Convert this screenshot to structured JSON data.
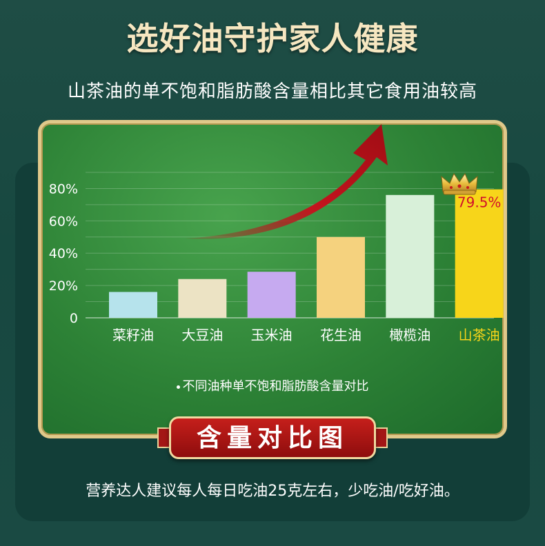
{
  "page": {
    "heading": "选好油守护家人健康",
    "subheading": "山茶油的单不饱和脂肪酸含量相比其它食用油较高",
    "source_note": "不同油种单不饱和脂肪酸含量对比",
    "ribbon_title": "含量对比图",
    "footer": "营养达人建议每人每日吃油25克左右，少吃油/吃好油。"
  },
  "chart_data": {
    "type": "bar",
    "categories": [
      "菜籽油",
      "大豆油",
      "玉米油",
      "花生油",
      "橄榄油",
      "山茶油"
    ],
    "values": [
      16,
      24,
      28.5,
      50,
      76,
      79.5
    ],
    "ylim": [
      0,
      90
    ],
    "yticks": [
      0,
      20,
      40,
      60,
      80
    ],
    "ytick_labels": [
      "0",
      "20%",
      "40%",
      "60%",
      "80%"
    ],
    "highlight_label": "79.5%",
    "grid": true,
    "colors": {
      "bars": [
        "#b6e3ec",
        "#ece3c4",
        "#c6aaf0",
        "#f5d27e",
        "#d8f0d9",
        "#f7d51a"
      ],
      "highlight_category_text": "#f7d51a",
      "category_text": "#ffffff",
      "highlight_label_text": "#d1102a",
      "arrow": "#c0121c",
      "crown": "#e6b93a"
    },
    "icons": [
      "crown-icon",
      "trend-arrow-icon"
    ]
  }
}
